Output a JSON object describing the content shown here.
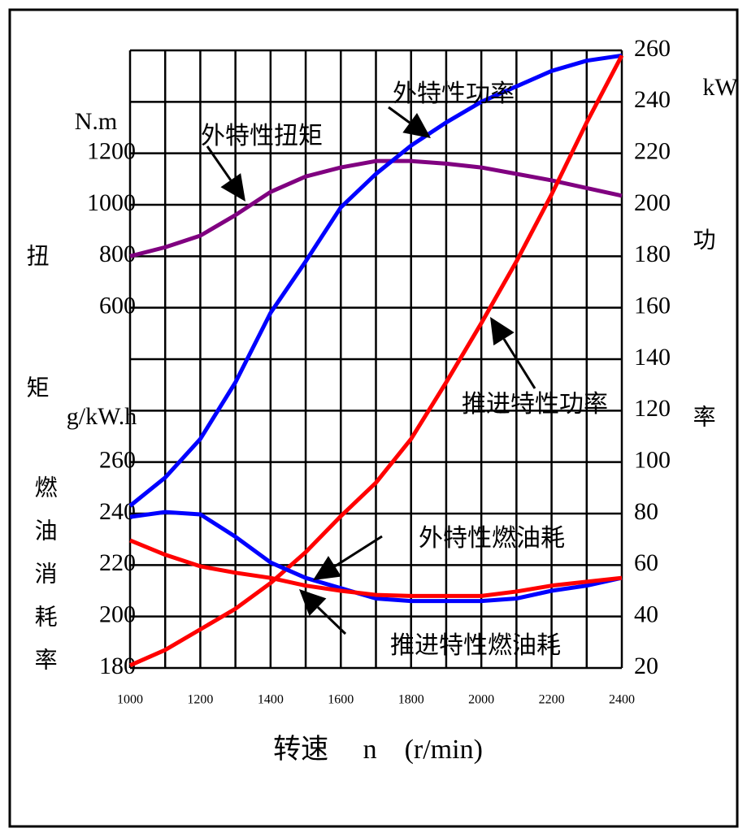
{
  "chart_data": {
    "type": "line",
    "xlabel": "转速　 n　(r/min)",
    "y_unit": "N.m",
    "y_label": "扭矩",
    "y2_unit": "kW",
    "y2_label": "功率",
    "y3_unit": "g/kW.h",
    "y3_label": "燃油消耗率",
    "x": [
      1000,
      1100,
      1200,
      1300,
      1400,
      1500,
      1600,
      1700,
      1800,
      1900,
      2000,
      2100,
      2200,
      2300,
      2400
    ],
    "xlim": [
      1000,
      2400
    ],
    "xticks": [
      1000,
      1200,
      1400,
      1600,
      1800,
      2000,
      2200,
      2400
    ],
    "ylim": [
      -800,
      1600
    ],
    "yticks": [
      600,
      800,
      1000,
      1200
    ],
    "y2lim": [
      20,
      260
    ],
    "y2ticks": [
      20,
      40,
      60,
      80,
      100,
      120,
      140,
      160,
      180,
      200,
      220,
      240,
      260
    ],
    "y3lim": [
      180,
      420
    ],
    "y3ticks": [
      180,
      200,
      220,
      240,
      260
    ],
    "grid": true,
    "series": [
      {
        "name": "外特性扭矩",
        "color": "#800080",
        "axis": "y",
        "values": [
          800,
          835,
          880,
          960,
          1050,
          1110,
          1145,
          1170,
          1170,
          1160,
          1145,
          1120,
          1095,
          1065,
          1035
        ]
      },
      {
        "name": "外特性功率",
        "color": "#0000ff",
        "axis": "y2",
        "values": [
          83,
          94,
          109,
          131,
          158,
          178,
          199,
          212,
          223,
          232,
          240,
          246,
          252,
          256,
          258
        ]
      },
      {
        "name": "推进特性功率",
        "color": "#ff0000",
        "axis": "y2",
        "values": [
          21,
          27,
          35,
          43,
          53,
          65,
          79,
          92,
          109,
          131,
          154,
          178,
          204,
          232,
          258
        ]
      },
      {
        "name": "外特性燃油耗",
        "color": "#0000ff",
        "axis": "y3",
        "values": [
          238.7,
          240.6,
          239.7,
          231,
          221,
          215,
          211,
          207,
          206,
          206,
          206,
          207,
          210,
          212,
          215
        ]
      },
      {
        "name": "推进特性燃油耗",
        "color": "#ff0000",
        "axis": "y3",
        "values": [
          229.6,
          224,
          219.5,
          217,
          215,
          212,
          210,
          208.4,
          208,
          208,
          208,
          209.7,
          212,
          213.5,
          215
        ]
      }
    ]
  }
}
